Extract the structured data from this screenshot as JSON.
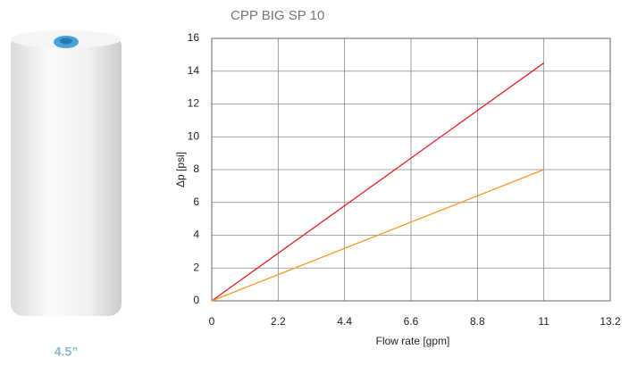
{
  "chart_data": {
    "type": "line",
    "title": "CPP BIG SP 10",
    "caption": "4.5”",
    "x_label": "Flow rate [gpm]",
    "y_label": "Δp [psi]",
    "x": [
      0,
      11
    ],
    "series": [
      {
        "color": "#e32027",
        "values": [
          0,
          14.5
        ]
      },
      {
        "color": "#f39a1e",
        "values": [
          0,
          8
        ]
      }
    ],
    "xlim": [
      0,
      13.2
    ],
    "xticks": [
      0,
      2.2,
      4.4,
      6.6,
      8.8,
      11,
      13.2
    ],
    "ylim": [
      0,
      16
    ],
    "yticks": [
      0,
      2,
      4,
      6,
      8,
      10,
      12,
      14,
      16
    ],
    "grid": true
  }
}
